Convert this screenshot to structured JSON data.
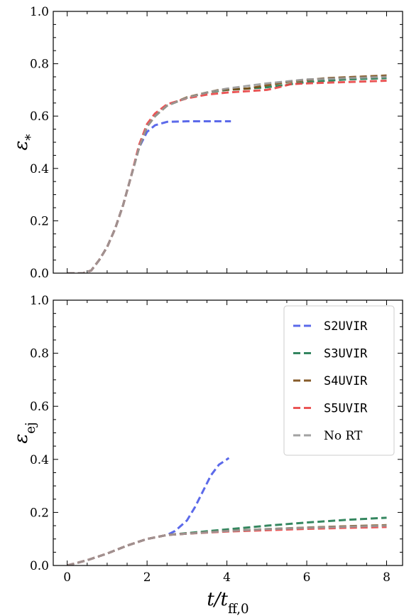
{
  "chart_data": [
    {
      "type": "line",
      "ylabel": "ε",
      "ylabel_sub": "*",
      "xlabel": "",
      "xlim": [
        -0.35,
        8.4
      ],
      "ylim": [
        0,
        1.0
      ],
      "xticks": [
        0,
        2,
        4,
        6,
        8
      ],
      "yticks": [
        0.0,
        0.2,
        0.4,
        0.6,
        0.8,
        1.0
      ],
      "ytick_labels": [
        "0.0",
        "0.2",
        "0.4",
        "0.6",
        "0.8",
        "1.0"
      ],
      "show_xtick_labels": false,
      "legend": false,
      "grid": false,
      "series": [
        {
          "name": "S2UVIR",
          "color": "#4a5ae8",
          "points": [
            [
              0,
              0
            ],
            [
              0.4,
              0
            ],
            [
              0.6,
              0.01
            ],
            [
              0.8,
              0.05
            ],
            [
              1.0,
              0.1
            ],
            [
              1.2,
              0.17
            ],
            [
              1.4,
              0.26
            ],
            [
              1.6,
              0.37
            ],
            [
              1.8,
              0.48
            ],
            [
              2.0,
              0.54
            ],
            [
              2.2,
              0.565
            ],
            [
              2.5,
              0.578
            ],
            [
              3.0,
              0.58
            ],
            [
              3.5,
              0.58
            ],
            [
              4.1,
              0.58
            ]
          ]
        },
        {
          "name": "S3UVIR",
          "color": "#1f7a4f",
          "points": [
            [
              0,
              0
            ],
            [
              0.4,
              0
            ],
            [
              0.6,
              0.01
            ],
            [
              0.8,
              0.05
            ],
            [
              1.0,
              0.1
            ],
            [
              1.2,
              0.17
            ],
            [
              1.4,
              0.26
            ],
            [
              1.6,
              0.37
            ],
            [
              1.8,
              0.48
            ],
            [
              2.0,
              0.56
            ],
            [
              2.2,
              0.6
            ],
            [
              2.5,
              0.64
            ],
            [
              3.0,
              0.67
            ],
            [
              3.5,
              0.69
            ],
            [
              4.0,
              0.7
            ],
            [
              5.0,
              0.71
            ],
            [
              6.0,
              0.73
            ],
            [
              7.0,
              0.74
            ],
            [
              8.0,
              0.745
            ]
          ]
        },
        {
          "name": "S4UVIR",
          "color": "#7a4a12",
          "points": [
            [
              0,
              0
            ],
            [
              0.4,
              0
            ],
            [
              0.6,
              0.01
            ],
            [
              0.8,
              0.05
            ],
            [
              1.0,
              0.1
            ],
            [
              1.2,
              0.17
            ],
            [
              1.4,
              0.26
            ],
            [
              1.6,
              0.37
            ],
            [
              1.8,
              0.48
            ],
            [
              2.0,
              0.56
            ],
            [
              2.2,
              0.6
            ],
            [
              2.5,
              0.64
            ],
            [
              3.0,
              0.672
            ],
            [
              3.5,
              0.69
            ],
            [
              3.8,
              0.7
            ],
            [
              4.5,
              0.705
            ],
            [
              5.5,
              0.73
            ],
            [
              6.5,
              0.745
            ],
            [
              8.0,
              0.755
            ]
          ]
        },
        {
          "name": "S5UVIR",
          "color": "#e84444",
          "points": [
            [
              0,
              0
            ],
            [
              0.4,
              0
            ],
            [
              0.6,
              0.01
            ],
            [
              0.8,
              0.05
            ],
            [
              1.0,
              0.1
            ],
            [
              1.2,
              0.17
            ],
            [
              1.4,
              0.26
            ],
            [
              1.6,
              0.37
            ],
            [
              1.8,
              0.49
            ],
            [
              2.0,
              0.57
            ],
            [
              2.2,
              0.61
            ],
            [
              2.5,
              0.645
            ],
            [
              3.0,
              0.668
            ],
            [
              3.5,
              0.682
            ],
            [
              4.0,
              0.69
            ],
            [
              5.0,
              0.7
            ],
            [
              5.3,
              0.71
            ],
            [
              5.6,
              0.722
            ],
            [
              6.0,
              0.725
            ],
            [
              7.0,
              0.73
            ],
            [
              8.0,
              0.735
            ]
          ]
        },
        {
          "name": "No RT",
          "color": "#999999",
          "points": [
            [
              0,
              0
            ],
            [
              0.4,
              0
            ],
            [
              0.6,
              0.01
            ],
            [
              0.8,
              0.05
            ],
            [
              1.0,
              0.1
            ],
            [
              1.2,
              0.17
            ],
            [
              1.4,
              0.26
            ],
            [
              1.6,
              0.37
            ],
            [
              1.8,
              0.48
            ],
            [
              2.0,
              0.56
            ],
            [
              2.2,
              0.6
            ],
            [
              2.5,
              0.64
            ],
            [
              3.0,
              0.67
            ],
            [
              3.5,
              0.69
            ],
            [
              4.0,
              0.705
            ],
            [
              5.0,
              0.725
            ],
            [
              6.0,
              0.74
            ],
            [
              7.0,
              0.745
            ],
            [
              8.0,
              0.75
            ]
          ]
        }
      ]
    },
    {
      "type": "line",
      "ylabel": "ε",
      "ylabel_sub": "ej",
      "xlabel": "t/t",
      "xlabel_sub": "ff,0",
      "xlim": [
        -0.35,
        8.4
      ],
      "ylim": [
        0,
        1.0
      ],
      "xticks": [
        0,
        2,
        4,
        6,
        8
      ],
      "xtick_labels": [
        "0",
        "2",
        "4",
        "6",
        "8"
      ],
      "yticks": [
        0.0,
        0.2,
        0.4,
        0.6,
        0.8,
        1.0
      ],
      "ytick_labels": [
        "0.0",
        "0.2",
        "0.4",
        "0.6",
        "0.8",
        "1.0"
      ],
      "show_xtick_labels": true,
      "legend": true,
      "legend_position": "top-right",
      "grid": false,
      "series": [
        {
          "name": "S2UVIR",
          "color": "#4a5ae8",
          "points": [
            [
              0,
              0
            ],
            [
              0.5,
              0.02
            ],
            [
              1.0,
              0.045
            ],
            [
              1.5,
              0.075
            ],
            [
              2.0,
              0.1
            ],
            [
              2.5,
              0.115
            ],
            [
              2.7,
              0.13
            ],
            [
              3.0,
              0.17
            ],
            [
              3.2,
              0.22
            ],
            [
              3.4,
              0.28
            ],
            [
              3.6,
              0.34
            ],
            [
              3.8,
              0.38
            ],
            [
              4.0,
              0.4
            ],
            [
              4.05,
              0.405
            ]
          ]
        },
        {
          "name": "S3UVIR",
          "color": "#1f7a4f",
          "points": [
            [
              0,
              0
            ],
            [
              0.5,
              0.02
            ],
            [
              1.0,
              0.045
            ],
            [
              1.5,
              0.075
            ],
            [
              2.0,
              0.1
            ],
            [
              2.5,
              0.115
            ],
            [
              3.0,
              0.122
            ],
            [
              4.0,
              0.136
            ],
            [
              5.0,
              0.15
            ],
            [
              6.0,
              0.162
            ],
            [
              7.0,
              0.172
            ],
            [
              8.0,
              0.18
            ]
          ]
        },
        {
          "name": "S4UVIR",
          "color": "#7a4a12",
          "points": [
            [
              0,
              0
            ],
            [
              0.5,
              0.02
            ],
            [
              1.0,
              0.045
            ],
            [
              1.5,
              0.075
            ],
            [
              2.0,
              0.1
            ],
            [
              2.5,
              0.115
            ],
            [
              3.0,
              0.12
            ],
            [
              4.0,
              0.13
            ],
            [
              5.0,
              0.137
            ],
            [
              6.0,
              0.143
            ],
            [
              7.0,
              0.148
            ],
            [
              8.0,
              0.152
            ]
          ]
        },
        {
          "name": "S5UVIR",
          "color": "#e84444",
          "points": [
            [
              0,
              0
            ],
            [
              0.5,
              0.02
            ],
            [
              1.0,
              0.045
            ],
            [
              1.5,
              0.075
            ],
            [
              2.0,
              0.1
            ],
            [
              2.5,
              0.115
            ],
            [
              3.0,
              0.12
            ],
            [
              4.0,
              0.128
            ],
            [
              5.0,
              0.133
            ],
            [
              6.0,
              0.138
            ],
            [
              7.0,
              0.142
            ],
            [
              8.0,
              0.145
            ]
          ]
        },
        {
          "name": "No RT",
          "color": "#999999",
          "points": [
            [
              0,
              0
            ],
            [
              0.5,
              0.02
            ],
            [
              1.0,
              0.045
            ],
            [
              1.5,
              0.075
            ],
            [
              2.0,
              0.1
            ],
            [
              2.5,
              0.115
            ],
            [
              3.0,
              0.12
            ],
            [
              4.0,
              0.13
            ],
            [
              5.0,
              0.137
            ],
            [
              6.0,
              0.142
            ],
            [
              7.0,
              0.146
            ],
            [
              8.0,
              0.15
            ]
          ]
        }
      ]
    }
  ]
}
